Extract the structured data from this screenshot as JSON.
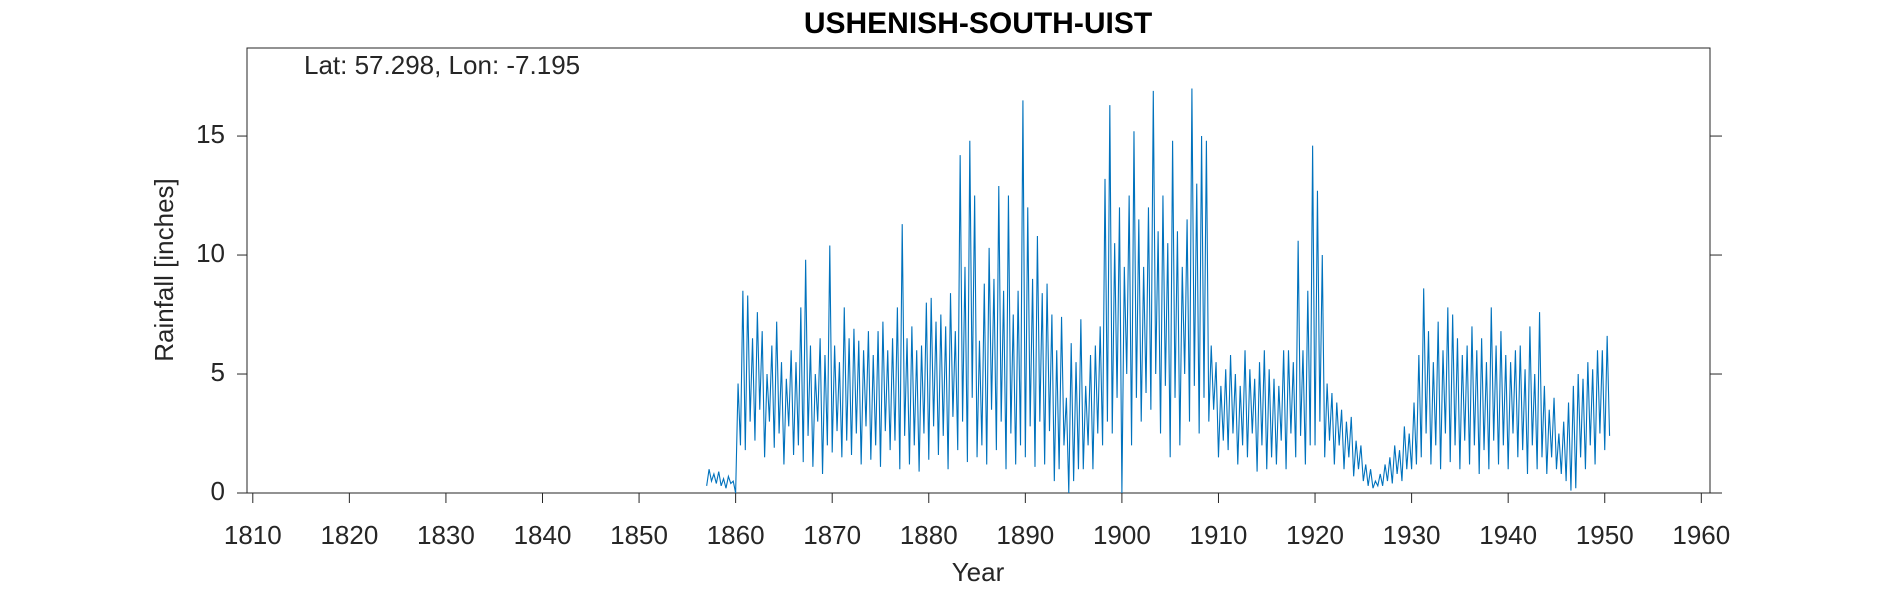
{
  "chart_data": {
    "type": "line",
    "title": "USHENISH-SOUTH-UIST",
    "annotation": "Lat: 57.298, Lon: -7.195",
    "x_label": "Year",
    "y_label": "Rainfall [inches]",
    "xlim": [
      1809.4,
      1960.9
    ],
    "ylim": [
      0,
      18.7
    ],
    "xticks": [
      1810,
      1820,
      1830,
      1840,
      1850,
      1860,
      1870,
      1880,
      1890,
      1900,
      1910,
      1920,
      1930,
      1940,
      1950,
      1960
    ],
    "yticks": [
      0,
      5,
      10,
      15
    ],
    "grid": false,
    "x": [
      1857,
      1857.25,
      1857.5,
      1857.75,
      1858,
      1858.25,
      1858.5,
      1858.75,
      1859,
      1859.25,
      1859.5,
      1859.75,
      1860,
      1860.25,
      1860.5,
      1860.75,
      1861,
      1861.25,
      1861.5,
      1861.75,
      1862,
      1862.25,
      1862.5,
      1862.75,
      1863,
      1863.25,
      1863.5,
      1863.75,
      1864,
      1864.25,
      1864.5,
      1864.75,
      1865,
      1865.25,
      1865.5,
      1865.75,
      1866,
      1866.25,
      1866.5,
      1866.75,
      1867,
      1867.25,
      1867.5,
      1867.75,
      1868,
      1868.25,
      1868.5,
      1868.75,
      1869,
      1869.25,
      1869.5,
      1869.75,
      1870,
      1870.25,
      1870.5,
      1870.75,
      1871,
      1871.25,
      1871.5,
      1871.75,
      1872,
      1872.25,
      1872.5,
      1872.75,
      1873,
      1873.25,
      1873.5,
      1873.75,
      1874,
      1874.25,
      1874.5,
      1874.75,
      1875,
      1875.25,
      1875.5,
      1875.75,
      1876,
      1876.25,
      1876.5,
      1876.75,
      1877,
      1877.25,
      1877.5,
      1877.75,
      1878,
      1878.25,
      1878.5,
      1878.75,
      1879,
      1879.25,
      1879.5,
      1879.75,
      1880,
      1880.25,
      1880.5,
      1880.75,
      1881,
      1881.25,
      1881.5,
      1881.75,
      1882,
      1882.25,
      1882.5,
      1882.75,
      1883,
      1883.25,
      1883.5,
      1883.75,
      1884,
      1884.25,
      1884.5,
      1884.75,
      1885,
      1885.25,
      1885.5,
      1885.75,
      1886,
      1886.25,
      1886.5,
      1886.75,
      1887,
      1887.25,
      1887.5,
      1887.75,
      1888,
      1888.25,
      1888.5,
      1888.75,
      1889,
      1889.25,
      1889.5,
      1889.75,
      1890,
      1890.25,
      1890.5,
      1890.75,
      1891,
      1891.25,
      1891.5,
      1891.75,
      1892,
      1892.25,
      1892.5,
      1892.75,
      1893,
      1893.25,
      1893.5,
      1893.75,
      1894,
      1894.25,
      1894.5,
      1894.75,
      1895,
      1895.25,
      1895.5,
      1895.75,
      1896,
      1896.25,
      1896.5,
      1896.75,
      1897,
      1897.25,
      1897.5,
      1897.75,
      1898,
      1898.25,
      1898.5,
      1898.75,
      1899,
      1899.25,
      1899.5,
      1899.75,
      1900,
      1900.25,
      1900.5,
      1900.75,
      1901,
      1901.25,
      1901.5,
      1901.75,
      1902,
      1902.25,
      1902.5,
      1902.75,
      1903,
      1903.25,
      1903.5,
      1903.75,
      1904,
      1904.25,
      1904.5,
      1904.75,
      1905,
      1905.25,
      1905.5,
      1905.75,
      1906,
      1906.25,
      1906.5,
      1906.75,
      1907,
      1907.25,
      1907.5,
      1907.75,
      1908,
      1908.25,
      1908.5,
      1908.75,
      1909,
      1909.25,
      1909.5,
      1909.75,
      1910,
      1910.25,
      1910.5,
      1910.75,
      1911,
      1911.25,
      1911.5,
      1911.75,
      1912,
      1912.25,
      1912.5,
      1912.75,
      1913,
      1913.25,
      1913.5,
      1913.75,
      1914,
      1914.25,
      1914.5,
      1914.75,
      1915,
      1915.25,
      1915.5,
      1915.75,
      1916,
      1916.25,
      1916.5,
      1916.75,
      1917,
      1917.25,
      1917.5,
      1917.75,
      1918,
      1918.25,
      1918.5,
      1918.75,
      1919,
      1919.25,
      1919.5,
      1919.75,
      1920,
      1920.25,
      1920.5,
      1920.75,
      1921,
      1921.25,
      1921.5,
      1921.75,
      1922,
      1922.25,
      1922.5,
      1922.75,
      1923,
      1923.25,
      1923.5,
      1923.75,
      1924,
      1924.25,
      1924.5,
      1924.75,
      1925,
      1925.25,
      1925.5,
      1925.75,
      1926,
      1926.25,
      1926.5,
      1926.75,
      1927,
      1927.25,
      1927.5,
      1927.75,
      1928,
      1928.25,
      1928.5,
      1928.75,
      1929,
      1929.25,
      1929.5,
      1929.75,
      1930,
      1930.25,
      1930.5,
      1930.75,
      1931,
      1931.25,
      1931.5,
      1931.75,
      1932,
      1932.25,
      1932.5,
      1932.75,
      1933,
      1933.25,
      1933.5,
      1933.75,
      1934,
      1934.25,
      1934.5,
      1934.75,
      1935,
      1935.25,
      1935.5,
      1935.75,
      1936,
      1936.25,
      1936.5,
      1936.75,
      1937,
      1937.25,
      1937.5,
      1937.75,
      1938,
      1938.25,
      1938.5,
      1938.75,
      1939,
      1939.25,
      1939.5,
      1939.75,
      1940,
      1940.25,
      1940.5,
      1940.75,
      1941,
      1941.25,
      1941.5,
      1941.75,
      1942,
      1942.25,
      1942.5,
      1942.75,
      1943,
      1943.25,
      1943.5,
      1943.75,
      1944,
      1944.25,
      1944.5,
      1944.75,
      1945,
      1945.25,
      1945.5,
      1945.75,
      1946,
      1946.25,
      1946.5,
      1946.75,
      1947,
      1947.25,
      1947.5,
      1947.75,
      1948,
      1948.25,
      1948.5,
      1948.75,
      1949,
      1949.25,
      1949.5,
      1949.75,
      1950,
      1950.25,
      1950.5
    ],
    "series": [
      {
        "name": "Rainfall",
        "color": "#0072bd",
        "values": [
          0.3,
          1.0,
          0.5,
          0.8,
          0.4,
          0.9,
          0.3,
          0.6,
          0.2,
          0.7,
          0.4,
          0.5,
          0.0,
          4.6,
          2.0,
          8.5,
          1.8,
          8.3,
          3.0,
          6.5,
          2.2,
          7.6,
          3.5,
          6.8,
          1.5,
          5.0,
          3.0,
          6.2,
          1.9,
          7.2,
          2.5,
          5.5,
          1.2,
          4.8,
          2.8,
          6.0,
          1.6,
          5.5,
          2.0,
          7.8,
          1.3,
          9.8,
          2.4,
          6.2,
          1.1,
          5.0,
          3.0,
          6.5,
          0.8,
          5.8,
          2.0,
          10.4,
          1.7,
          6.2,
          2.6,
          5.5,
          1.5,
          7.8,
          2.2,
          6.5,
          1.6,
          6.9,
          2.5,
          6.4,
          1.2,
          6.0,
          2.8,
          6.8,
          1.4,
          5.8,
          2.0,
          6.8,
          1.1,
          7.2,
          2.6,
          6.0,
          1.8,
          6.5,
          2.2,
          7.8,
          1.0,
          11.3,
          2.4,
          6.5,
          1.2,
          7.0,
          2.0,
          6.0,
          0.9,
          6.2,
          2.5,
          8.0,
          1.4,
          8.2,
          2.8,
          7.2,
          1.6,
          7.5,
          2.4,
          7.0,
          1.0,
          8.4,
          3.2,
          6.8,
          1.8,
          14.2,
          3.0,
          9.5,
          1.3,
          14.8,
          4.0,
          12.5,
          1.5,
          6.4,
          2.0,
          8.8,
          1.2,
          10.3,
          3.5,
          9.0,
          1.8,
          12.9,
          3.0,
          8.5,
          1.0,
          12.5,
          2.5,
          7.5,
          1.2,
          8.5,
          2.0,
          16.5,
          1.5,
          12.0,
          2.8,
          9.0,
          1.1,
          10.8,
          3.0,
          8.4,
          1.2,
          8.8,
          2.6,
          7.5,
          0.5,
          6.0,
          1.0,
          7.4,
          2.0,
          4.0,
          0.0,
          6.3,
          0.5,
          5.5,
          1.0,
          7.3,
          1.0,
          4.5,
          2.0,
          5.8,
          1.0,
          6.2,
          2.5,
          7.0,
          2.0,
          13.2,
          3.0,
          16.3,
          2.5,
          10.5,
          4.0,
          12.0,
          0.0,
          9.5,
          5.0,
          12.5,
          2.0,
          15.2,
          4.0,
          11.5,
          3.0,
          9.5,
          4.2,
          12.0,
          3.5,
          16.9,
          5.0,
          11.0,
          2.5,
          12.5,
          4.5,
          10.5,
          1.5,
          14.8,
          4.0,
          11.0,
          2.0,
          9.5,
          5.0,
          11.5,
          3.0,
          17.0,
          4.5,
          13.0,
          2.5,
          15.0,
          4.0,
          14.8,
          3.0,
          6.2,
          3.5,
          5.5,
          1.5,
          4.5,
          2.2,
          5.2,
          1.8,
          5.8,
          2.5,
          5.0,
          1.2,
          4.5,
          2.0,
          6.0,
          1.5,
          5.2,
          2.5,
          4.8,
          0.9,
          5.5,
          2.0,
          6.0,
          1.0,
          5.2,
          1.5,
          4.8,
          1.2,
          4.5,
          2.2,
          6.0,
          1.0,
          6.0,
          2.5,
          5.5,
          1.5,
          10.6,
          2.4,
          6.0,
          1.2,
          8.5,
          2.0,
          14.6,
          2.0,
          12.7,
          3.0,
          10.0,
          1.5,
          4.6,
          2.2,
          4.2,
          1.2,
          3.8,
          2.0,
          3.5,
          1.0,
          3.0,
          1.5,
          3.2,
          0.7,
          2.2,
          1.0,
          2.0,
          0.5,
          1.2,
          0.3,
          1.0,
          0.2,
          0.5,
          0.3,
          0.8,
          0.3,
          1.2,
          0.5,
          1.5,
          0.4,
          2.0,
          0.8,
          1.8,
          0.5,
          2.8,
          1.0,
          2.5,
          1.0,
          3.8,
          1.2,
          5.8,
          1.5,
          8.6,
          2.5,
          6.8,
          1.2,
          5.5,
          2.0,
          7.2,
          1.0,
          6.0,
          2.5,
          7.8,
          1.3,
          7.5,
          2.0,
          6.5,
          1.0,
          5.8,
          2.2,
          6.2,
          1.2,
          7.0,
          2.0,
          6.0,
          0.8,
          6.5,
          1.8,
          5.5,
          1.0,
          7.8,
          2.2,
          6.2,
          1.2,
          6.8,
          2.0,
          5.8,
          1.0,
          5.5,
          2.5,
          6.0,
          1.5,
          6.2,
          1.8,
          5.2,
          0.8,
          7.0,
          2.0,
          5.0,
          1.0,
          7.6,
          1.5,
          4.5,
          0.8,
          3.5,
          1.5,
          4.0,
          1.0,
          2.5,
          0.8,
          3.0,
          0.5,
          3.8,
          0.1,
          4.5,
          0.2,
          5.0,
          1.5,
          4.8,
          1.0,
          5.5,
          2.0,
          5.2,
          1.2,
          6.0,
          2.5,
          6.0,
          1.8,
          6.6,
          2.4
        ]
      }
    ]
  }
}
